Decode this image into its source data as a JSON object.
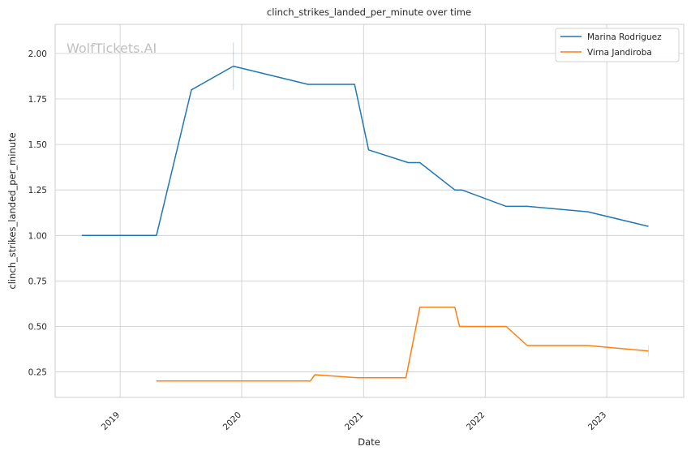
{
  "chart_data": {
    "type": "line",
    "title": "clinch_strikes_landed_per_minute over time",
    "xlabel": "Date",
    "ylabel": "clinch_strikes_landed_per_minute",
    "watermark": "WolfTickets.AI",
    "xlim": [
      "2018-06-20",
      "2023-08-20"
    ],
    "ylim": [
      0.11,
      2.16
    ],
    "x_ticks": [
      {
        "date": "2019-01-01",
        "label": "2019"
      },
      {
        "date": "2020-01-01",
        "label": "2020"
      },
      {
        "date": "2021-01-01",
        "label": "2021"
      },
      {
        "date": "2022-01-01",
        "label": "2022"
      },
      {
        "date": "2023-01-01",
        "label": "2023"
      }
    ],
    "y_ticks": [
      {
        "value": 0.25,
        "label": "0.25"
      },
      {
        "value": 0.5,
        "label": "0.50"
      },
      {
        "value": 0.75,
        "label": "0.75"
      },
      {
        "value": 1.0,
        "label": "1.00"
      },
      {
        "value": 1.25,
        "label": "1.25"
      },
      {
        "value": 1.5,
        "label": "1.50"
      },
      {
        "value": 1.75,
        "label": "1.75"
      },
      {
        "value": 2.0,
        "label": "2.00"
      }
    ],
    "grid": true,
    "legend_position": "top-right",
    "series": [
      {
        "name": "Marina Rodriguez",
        "color": "#1f77b4",
        "points": [
          {
            "x": "2018-09-08",
            "y": 1.0
          },
          {
            "x": "2019-04-20",
            "y": 1.0
          },
          {
            "x": "2019-08-03",
            "y": 1.8
          },
          {
            "x": "2019-12-07",
            "y": 1.93
          },
          {
            "x": "2020-07-18",
            "y": 1.83
          },
          {
            "x": "2020-12-05",
            "y": 1.83
          },
          {
            "x": "2021-01-16",
            "y": 1.47
          },
          {
            "x": "2021-05-15",
            "y": 1.4
          },
          {
            "x": "2021-06-19",
            "y": 1.4
          },
          {
            "x": "2021-10-02",
            "y": 1.25
          },
          {
            "x": "2021-10-23",
            "y": 1.25
          },
          {
            "x": "2022-03-05",
            "y": 1.16
          },
          {
            "x": "2022-05-07",
            "y": 1.16
          },
          {
            "x": "2022-11-05",
            "y": 1.13
          },
          {
            "x": "2023-05-06",
            "y": 1.05
          }
        ],
        "error_bars": [
          {
            "x": "2019-12-07",
            "low": 1.8,
            "high": 2.06
          }
        ]
      },
      {
        "name": "Virna Jandiroba",
        "color": "#ff7f0e",
        "points": [
          {
            "x": "2019-04-20",
            "y": 0.2
          },
          {
            "x": "2020-07-25",
            "y": 0.2
          },
          {
            "x": "2020-08-08",
            "y": 0.235
          },
          {
            "x": "2020-12-12",
            "y": 0.218
          },
          {
            "x": "2021-05-08",
            "y": 0.218
          },
          {
            "x": "2021-06-19",
            "y": 0.605
          },
          {
            "x": "2021-10-02",
            "y": 0.605
          },
          {
            "x": "2021-10-16",
            "y": 0.5
          },
          {
            "x": "2022-03-05",
            "y": 0.5
          },
          {
            "x": "2022-05-07",
            "y": 0.395
          },
          {
            "x": "2022-11-05",
            "y": 0.395
          },
          {
            "x": "2023-05-06",
            "y": 0.365
          }
        ],
        "error_bars": [
          {
            "x": "2023-05-06",
            "low": 0.335,
            "high": 0.395
          }
        ]
      }
    ]
  }
}
